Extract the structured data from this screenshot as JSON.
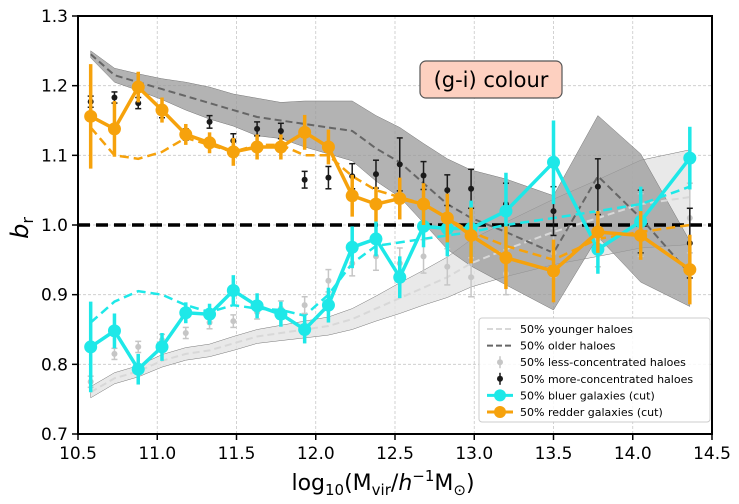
{
  "chart_data": {
    "type": "line",
    "annotation": "(g-i) colour",
    "annotation_color": "#fdd0c0",
    "xlabel": {
      "pre": "log",
      "sub": "10",
      "mid": "(M",
      "sub2": "vir",
      "slash": "/",
      "h": "h",
      "sup": "−1",
      "msun": "M",
      "sun_sub": "⊙",
      "close": ")"
    },
    "ylabel": {
      "main": "b",
      "sub": "r"
    },
    "xlim": [
      10.5,
      14.5
    ],
    "ylim": [
      0.7,
      1.3
    ],
    "xticks": [
      10.5,
      11.0,
      11.5,
      12.0,
      12.5,
      13.0,
      13.5,
      14.0,
      14.5
    ],
    "yticks": [
      0.7,
      0.8,
      0.9,
      1.0,
      1.1,
      1.2,
      1.3
    ],
    "xtick_labels": [
      "10.5",
      "11.0",
      "11.5",
      "12.0",
      "12.5",
      "13.0",
      "13.5",
      "14.0",
      "14.5"
    ],
    "ytick_labels": [
      "0.7",
      "0.8",
      "0.9",
      "1.0",
      "1.1",
      "1.2",
      "1.3"
    ],
    "grid": true,
    "reference_line": 1.0,
    "legend_position": "bottom-right",
    "colors": {
      "younger": "#d8d8d8",
      "older": "#666666",
      "less_concentrated": "#c6c6c6",
      "more_concentrated": "#1a1a1a",
      "bluer": "#1ee8e8",
      "redder": "#f6a20c",
      "older_band": "#9a9a9a",
      "younger_band": "#e3e3e3"
    },
    "series": [
      {
        "name": "50% younger haloes",
        "style": "dashed-band",
        "x": [
          10.58,
          10.73,
          10.88,
          11.03,
          11.18,
          11.33,
          11.48,
          11.63,
          11.78,
          11.93,
          12.08,
          12.23,
          12.38,
          12.53,
          12.68,
          12.83,
          12.98,
          13.2,
          13.5,
          13.78,
          14.05,
          14.36
        ],
        "y": [
          0.76,
          0.78,
          0.79,
          0.805,
          0.815,
          0.82,
          0.83,
          0.84,
          0.845,
          0.85,
          0.855,
          0.865,
          0.88,
          0.895,
          0.91,
          0.925,
          0.945,
          0.965,
          0.99,
          1.01,
          1.03,
          1.04
        ],
        "band_low": [
          0.752,
          0.772,
          0.782,
          0.796,
          0.806,
          0.811,
          0.82,
          0.83,
          0.834,
          0.838,
          0.842,
          0.85,
          0.862,
          0.873,
          0.885,
          0.896,
          0.911,
          0.926,
          0.943,
          0.955,
          0.967,
          0.972
        ],
        "band_high": [
          0.768,
          0.788,
          0.798,
          0.814,
          0.824,
          0.829,
          0.84,
          0.85,
          0.856,
          0.862,
          0.868,
          0.88,
          0.898,
          0.917,
          0.935,
          0.954,
          0.979,
          1.004,
          1.037,
          1.065,
          1.093,
          1.108
        ]
      },
      {
        "name": "50% older haloes",
        "style": "dashed-band",
        "x": [
          10.58,
          10.73,
          10.88,
          11.03,
          11.18,
          11.33,
          11.48,
          11.63,
          11.78,
          11.93,
          12.08,
          12.23,
          12.38,
          12.53,
          12.68,
          12.83,
          12.98,
          13.2,
          13.5,
          13.78,
          14.05,
          14.36
        ],
        "y": [
          1.245,
          1.215,
          1.205,
          1.195,
          1.185,
          1.175,
          1.165,
          1.155,
          1.15,
          1.145,
          1.14,
          1.135,
          1.11,
          1.09,
          1.06,
          1.03,
          1.01,
          0.99,
          0.96,
          1.07,
          1.01,
          0.93
        ],
        "band_low": [
          1.24,
          1.205,
          1.193,
          1.18,
          1.165,
          1.152,
          1.142,
          1.128,
          1.124,
          1.112,
          1.102,
          1.092,
          1.063,
          1.04,
          1.003,
          0.965,
          0.941,
          0.914,
          0.878,
          0.983,
          0.918,
          0.883
        ],
        "band_high": [
          1.25,
          1.225,
          1.217,
          1.21,
          1.205,
          1.198,
          1.188,
          1.182,
          1.176,
          1.178,
          1.178,
          1.178,
          1.157,
          1.14,
          1.117,
          1.095,
          1.079,
          1.066,
          1.042,
          1.157,
          1.102,
          0.977
        ]
      },
      {
        "name": "50% less-concentrated haloes",
        "style": "errorbar",
        "x": [
          10.58,
          10.73,
          10.88,
          11.03,
          11.18,
          11.33,
          11.48,
          11.63,
          11.78,
          11.93,
          12.08,
          12.23,
          12.38,
          12.53,
          12.68,
          12.83,
          12.98,
          13.2,
          13.5,
          13.78,
          14.05,
          14.36
        ],
        "y": [
          0.775,
          0.815,
          0.825,
          0.835,
          0.845,
          0.86,
          0.862,
          0.875,
          0.88,
          0.885,
          0.92,
          0.945,
          0.955,
          0.945,
          0.955,
          0.94,
          0.925,
          0.93,
          0.96,
          0.98,
          1.0,
          1.01
        ],
        "err": [
          0.008,
          0.008,
          0.008,
          0.008,
          0.008,
          0.009,
          0.009,
          0.01,
          0.011,
          0.012,
          0.016,
          0.018,
          0.02,
          0.022,
          0.024,
          0.026,
          0.028,
          0.03,
          0.035,
          0.04,
          0.045,
          0.05
        ]
      },
      {
        "name": "50% more-concentrated haloes",
        "style": "errorbar",
        "x": [
          10.58,
          10.73,
          10.88,
          11.03,
          11.18,
          11.33,
          11.48,
          11.63,
          11.78,
          11.93,
          12.08,
          12.23,
          12.38,
          12.53,
          12.68,
          12.83,
          12.98,
          13.2,
          13.5,
          13.78,
          14.05,
          14.36
        ],
        "y": [
          1.177,
          1.183,
          1.175,
          1.162,
          1.13,
          1.148,
          1.121,
          1.138,
          1.135,
          1.065,
          1.068,
          1.07,
          1.073,
          1.087,
          1.071,
          1.05,
          1.052,
          1.03,
          1.02,
          1.055,
          1.005,
          0.974
        ],
        "err": [
          0.008,
          0.008,
          0.008,
          0.008,
          0.008,
          0.009,
          0.01,
          0.01,
          0.011,
          0.012,
          0.016,
          0.018,
          0.02,
          0.038,
          0.02,
          0.022,
          0.028,
          0.03,
          0.035,
          0.04,
          0.045,
          0.05
        ]
      },
      {
        "name": "50% bluer galaxies (cut)",
        "style": "solid-marker",
        "x": [
          10.58,
          10.73,
          10.88,
          11.03,
          11.18,
          11.33,
          11.48,
          11.63,
          11.78,
          11.93,
          12.08,
          12.23,
          12.38,
          12.53,
          12.68,
          12.83,
          12.98,
          13.2,
          13.5,
          13.78,
          14.05,
          14.36
        ],
        "y": [
          0.825,
          0.848,
          0.793,
          0.825,
          0.874,
          0.872,
          0.906,
          0.884,
          0.872,
          0.85,
          0.885,
          0.968,
          0.98,
          0.925,
          0.998,
          0.995,
          0.995,
          1.02,
          1.09,
          0.965,
          1.005,
          1.096
        ],
        "err": [
          0.065,
          0.025,
          0.022,
          0.02,
          0.015,
          0.015,
          0.022,
          0.018,
          0.018,
          0.02,
          0.025,
          0.03,
          0.025,
          0.03,
          0.03,
          0.04,
          0.04,
          0.055,
          0.06,
          0.035,
          0.05,
          0.045
        ],
        "dashed_x": [
          10.58,
          10.73,
          10.88,
          11.03,
          11.18,
          11.33,
          11.48,
          11.63,
          11.78,
          11.93,
          12.08,
          12.23,
          12.38,
          12.53,
          12.68,
          12.83,
          12.98,
          13.2,
          13.5,
          13.78,
          14.05,
          14.36
        ],
        "dashed_y": [
          0.86,
          0.89,
          0.905,
          0.9,
          0.885,
          0.875,
          0.885,
          0.88,
          0.878,
          0.87,
          0.9,
          0.945,
          0.97,
          0.975,
          0.98,
          0.985,
          0.99,
          1.0,
          1.01,
          1.02,
          1.03,
          1.055
        ]
      },
      {
        "name": "50% redder galaxies (cut)",
        "style": "solid-marker",
        "x": [
          10.58,
          10.73,
          10.88,
          11.03,
          11.18,
          11.33,
          11.48,
          11.63,
          11.78,
          11.93,
          12.08,
          12.23,
          12.38,
          12.53,
          12.68,
          12.83,
          12.98,
          13.2,
          13.5,
          13.78,
          14.05,
          14.36
        ],
        "y": [
          1.156,
          1.138,
          1.198,
          1.165,
          1.13,
          1.118,
          1.105,
          1.112,
          1.112,
          1.133,
          1.112,
          1.042,
          1.03,
          1.038,
          1.03,
          1.01,
          0.985,
          0.953,
          0.934,
          0.99,
          0.985,
          0.936
        ],
        "err": [
          0.075,
          0.04,
          0.022,
          0.018,
          0.015,
          0.015,
          0.02,
          0.018,
          0.018,
          0.025,
          0.025,
          0.03,
          0.025,
          0.03,
          0.03,
          0.035,
          0.04,
          0.045,
          0.045,
          0.03,
          0.035,
          0.05
        ],
        "dashed_x": [
          10.58,
          10.73,
          10.88,
          11.03,
          11.18,
          11.33,
          11.48,
          11.63,
          11.78,
          11.93,
          12.08,
          12.23,
          12.38,
          12.53,
          12.68,
          12.83,
          12.98,
          13.2,
          13.5,
          13.78,
          14.05,
          14.36
        ],
        "dashed_y": [
          1.14,
          1.1,
          1.095,
          1.105,
          1.125,
          1.115,
          1.105,
          1.115,
          1.115,
          1.1,
          1.1,
          1.07,
          1.05,
          1.04,
          1.03,
          1.01,
          0.99,
          0.97,
          0.95,
          0.98,
          0.99,
          1.0
        ]
      }
    ]
  }
}
